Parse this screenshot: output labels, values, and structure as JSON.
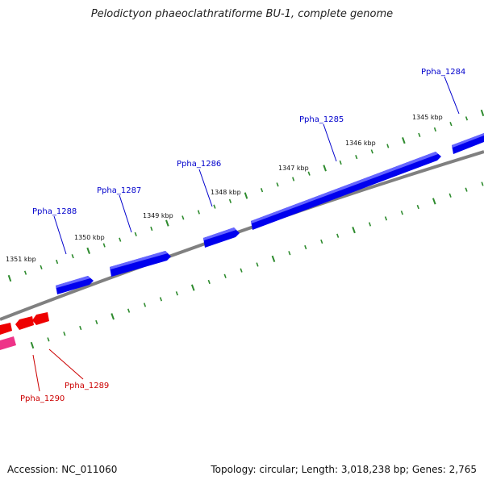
{
  "title": "Pelodictyon phaeoclathratiforme BU-1, complete genome",
  "footer": {
    "accession": "Accession: NC_011060",
    "summary": "Topology: circular; Length: 3,018,238 bp; Genes: 2,765"
  },
  "colors": {
    "backbone": "#808080",
    "forward_gene": "#0000ee",
    "reverse_gene": "#ee0000",
    "pink_feature": "#ee3388",
    "tick": "#2e8b2e",
    "label_forward": "#0000cc",
    "label_reverse": "#cc0000"
  },
  "scale_labels": [
    "1345 kbp",
    "1346 kbp",
    "1347 kbp",
    "1348 kbp",
    "1349 kbp",
    "1350 kbp",
    "1351 kbp"
  ],
  "genes_forward": [
    "Ppha_1284",
    "Ppha_1285",
    "Ppha_1286",
    "Ppha_1287",
    "Ppha_1288"
  ],
  "genes_reverse": [
    "Ppha_1289",
    "Ppha_1290"
  ]
}
